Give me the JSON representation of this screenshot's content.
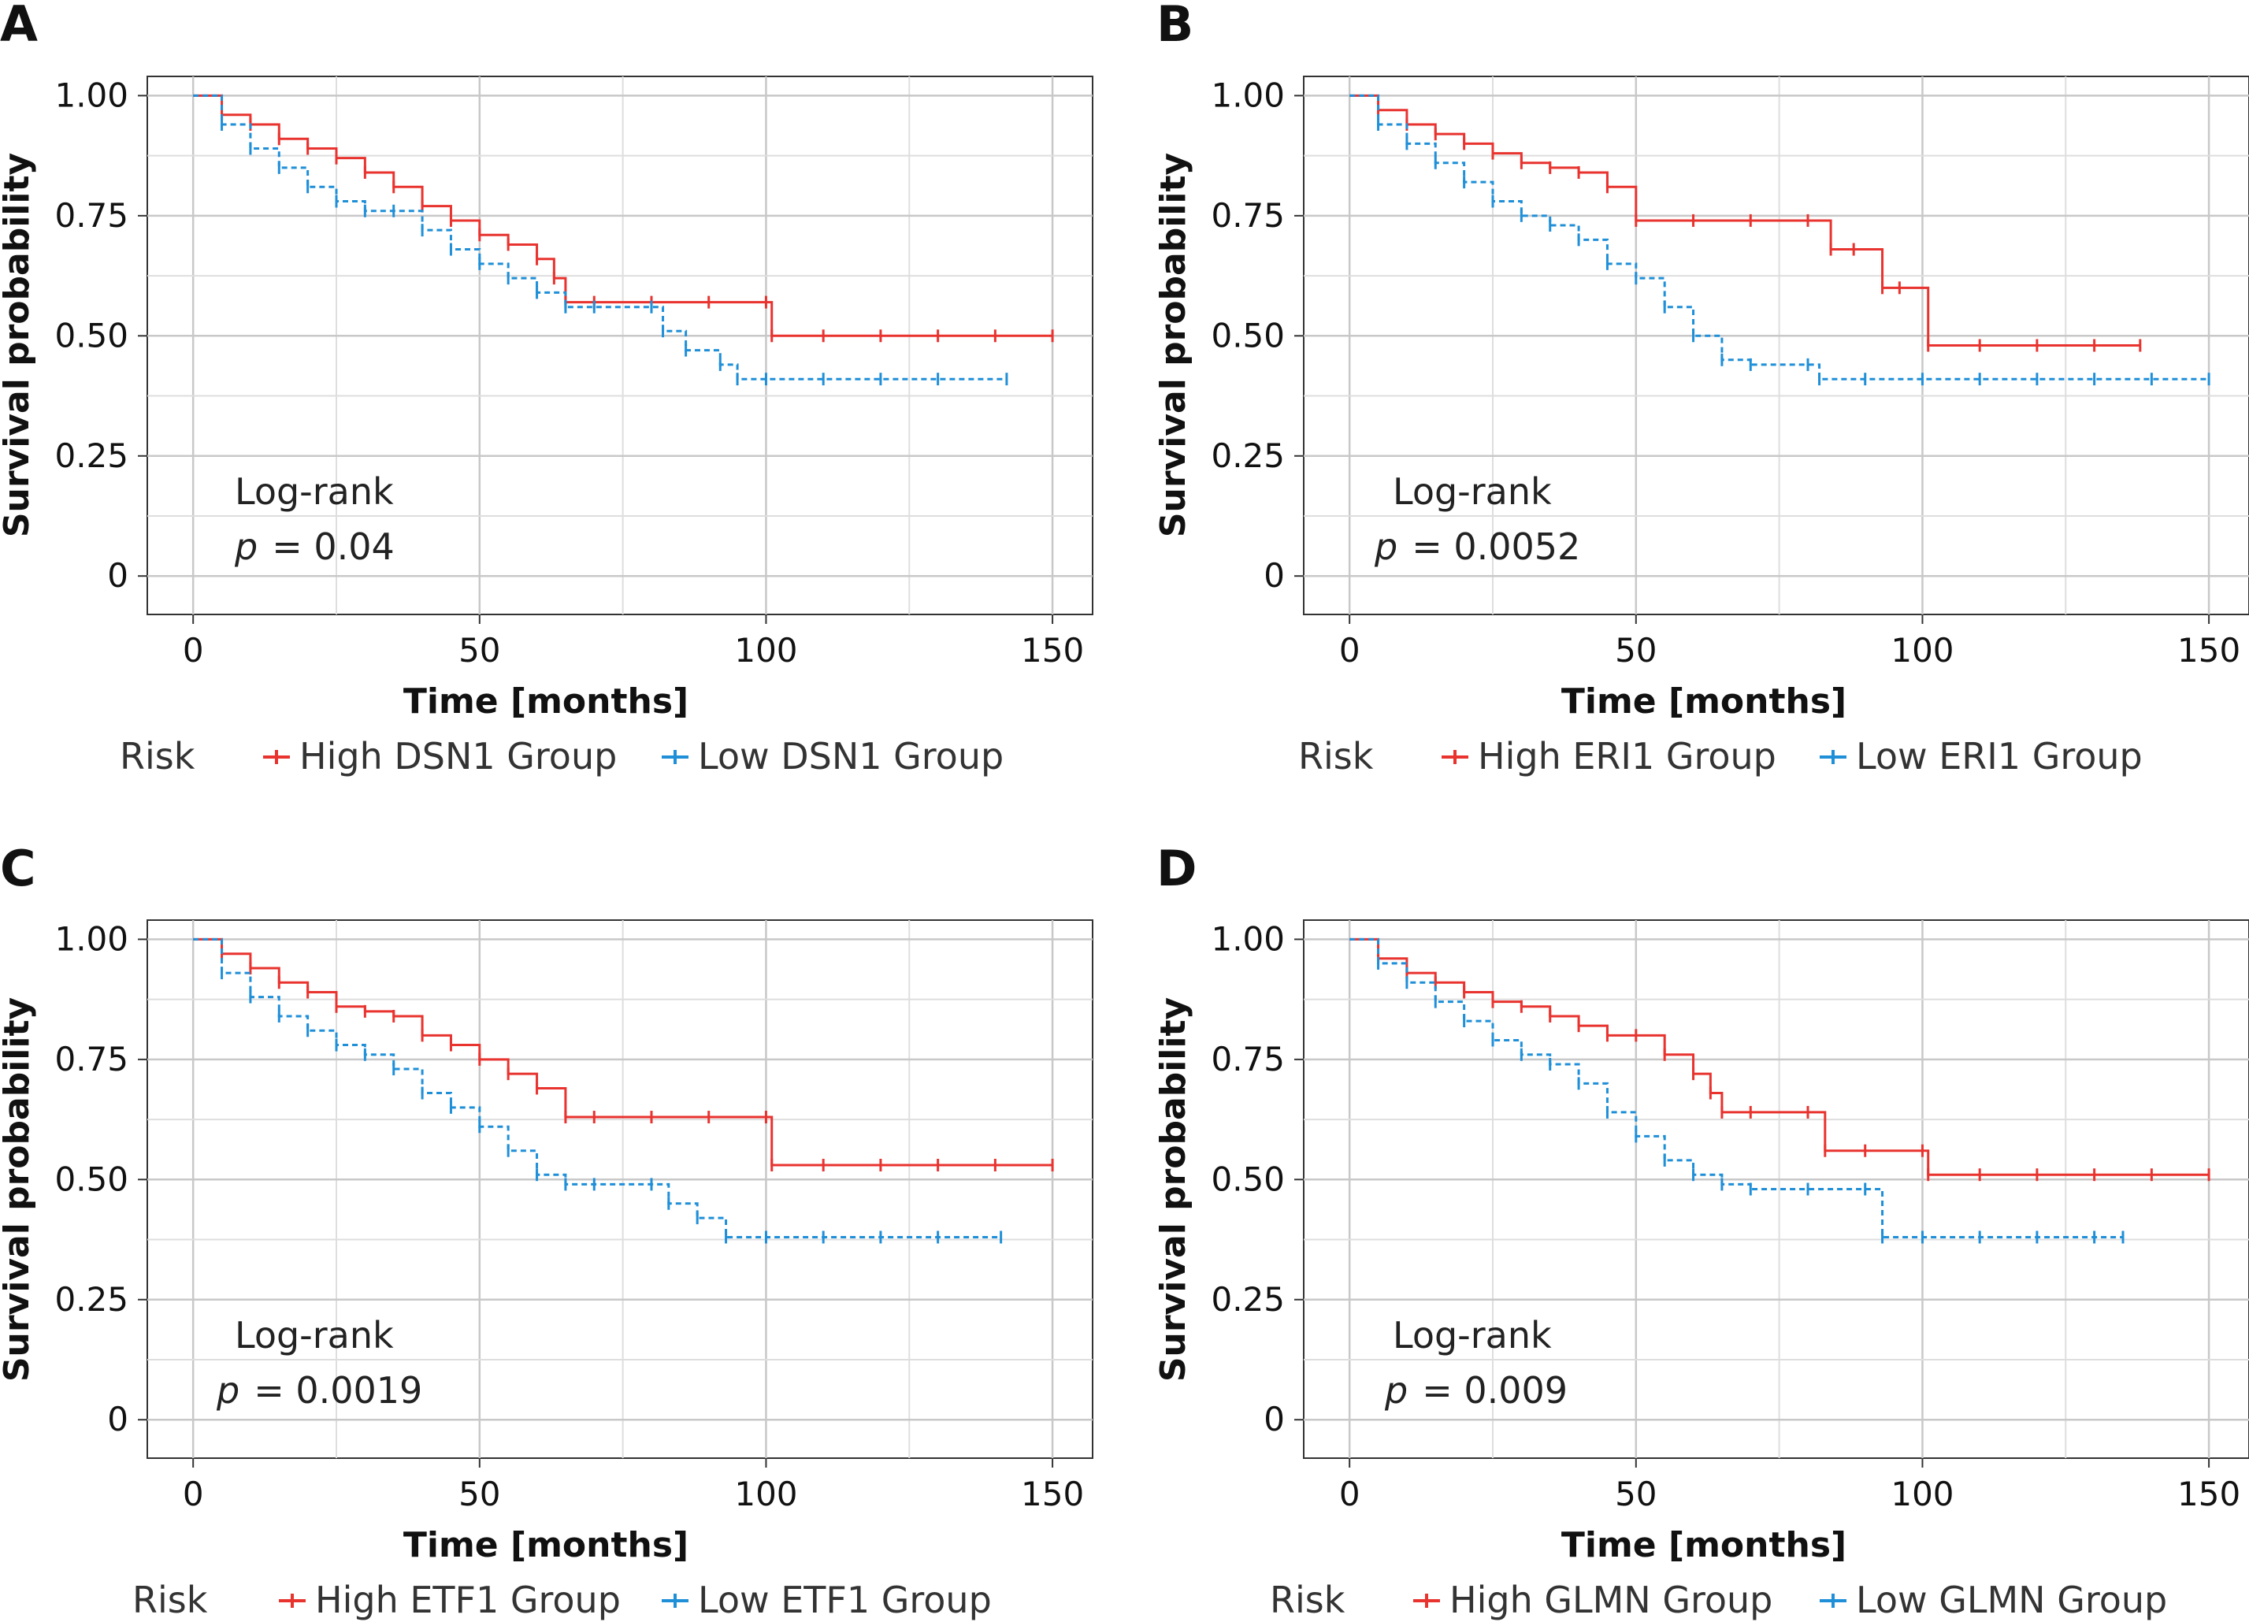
{
  "chart_data": [
    {
      "panel_label": "A",
      "type": "line",
      "xlabel": "Time [months]",
      "ylabel": "Survival probability",
      "xlim": [
        -8,
        157
      ],
      "ylim": [
        -0.08,
        1.04
      ],
      "xticks": [
        "0",
        "50",
        "100",
        "150"
      ],
      "yticks": [
        "0",
        "0.25",
        "0.50",
        "0.75",
        "1.00"
      ],
      "grid": true,
      "annotation_title": "Log-rank",
      "annotation_p_symbol": "p",
      "annotation_p_value": "= 0.04",
      "legend_title": "Risk",
      "legend_position": "bottom",
      "series": [
        {
          "name": "High DSN1 Group",
          "color": "#e8332f",
          "dashed": false,
          "x": [
            0,
            5,
            10,
            15,
            20,
            25,
            30,
            35,
            40,
            45,
            50,
            55,
            60,
            63,
            65,
            70,
            80,
            90,
            100,
            101,
            110,
            120,
            130,
            140,
            150
          ],
          "y": [
            1.0,
            0.96,
            0.94,
            0.91,
            0.89,
            0.87,
            0.84,
            0.81,
            0.77,
            0.74,
            0.71,
            0.69,
            0.66,
            0.62,
            0.57,
            0.57,
            0.57,
            0.57,
            0.57,
            0.5,
            0.5,
            0.5,
            0.5,
            0.5,
            0.5
          ]
        },
        {
          "name": "Low DSN1 Group",
          "color": "#1f8fd8",
          "dashed": true,
          "x": [
            0,
            5,
            10,
            15,
            20,
            25,
            30,
            35,
            40,
            45,
            50,
            55,
            60,
            65,
            70,
            80,
            82,
            86,
            92,
            95,
            100,
            110,
            120,
            130,
            142
          ],
          "y": [
            1.0,
            0.94,
            0.89,
            0.85,
            0.81,
            0.78,
            0.76,
            0.76,
            0.72,
            0.68,
            0.65,
            0.62,
            0.59,
            0.56,
            0.56,
            0.56,
            0.51,
            0.47,
            0.44,
            0.41,
            0.41,
            0.41,
            0.41,
            0.41,
            0.41
          ]
        }
      ]
    },
    {
      "panel_label": "B",
      "type": "line",
      "xlabel": "Time [months]",
      "ylabel": "Survival probability",
      "xlim": [
        -8,
        157
      ],
      "ylim": [
        -0.08,
        1.04
      ],
      "xticks": [
        "0",
        "50",
        "100",
        "150"
      ],
      "yticks": [
        "0",
        "0.25",
        "0.50",
        "0.75",
        "1.00"
      ],
      "grid": true,
      "annotation_title": "Log-rank",
      "annotation_p_symbol": "p",
      "annotation_p_value": "= 0.0052",
      "legend_title": "Risk",
      "legend_position": "bottom",
      "series": [
        {
          "name": "High ERI1 Group",
          "color": "#e8332f",
          "dashed": false,
          "x": [
            0,
            5,
            10,
            15,
            20,
            25,
            30,
            35,
            40,
            45,
            50,
            60,
            70,
            80,
            84,
            88,
            93,
            96,
            101,
            110,
            120,
            130,
            138
          ],
          "y": [
            1.0,
            0.97,
            0.94,
            0.92,
            0.9,
            0.88,
            0.86,
            0.85,
            0.84,
            0.81,
            0.74,
            0.74,
            0.74,
            0.74,
            0.68,
            0.68,
            0.6,
            0.6,
            0.48,
            0.48,
            0.48,
            0.48,
            0.48
          ]
        },
        {
          "name": "Low ERI1 Group",
          "color": "#1f8fd8",
          "dashed": true,
          "x": [
            0,
            5,
            10,
            15,
            20,
            25,
            30,
            35,
            40,
            45,
            50,
            55,
            60,
            65,
            70,
            80,
            82,
            90,
            100,
            110,
            120,
            130,
            140,
            150
          ],
          "y": [
            1.0,
            0.94,
            0.9,
            0.86,
            0.82,
            0.78,
            0.75,
            0.73,
            0.7,
            0.65,
            0.62,
            0.56,
            0.5,
            0.45,
            0.44,
            0.44,
            0.41,
            0.41,
            0.41,
            0.41,
            0.41,
            0.41,
            0.41,
            0.41
          ]
        }
      ]
    },
    {
      "panel_label": "C",
      "type": "line",
      "xlabel": "Time [months]",
      "ylabel": "Survival probability",
      "xlim": [
        -8,
        157
      ],
      "ylim": [
        -0.08,
        1.04
      ],
      "xticks": [
        "0",
        "50",
        "100",
        "150"
      ],
      "yticks": [
        "0",
        "0.25",
        "0.50",
        "0.75",
        "1.00"
      ],
      "grid": true,
      "annotation_title": "Log-rank",
      "annotation_p_symbol": "p",
      "annotation_p_value": "= 0.0019",
      "legend_title": "Risk",
      "legend_position": "bottom",
      "series": [
        {
          "name": "High ETF1 Group",
          "color": "#e8332f",
          "dashed": false,
          "x": [
            0,
            5,
            10,
            15,
            20,
            25,
            30,
            35,
            40,
            45,
            50,
            55,
            60,
            65,
            70,
            80,
            90,
            100,
            101,
            110,
            120,
            130,
            140,
            150
          ],
          "y": [
            1.0,
            0.97,
            0.94,
            0.91,
            0.89,
            0.86,
            0.85,
            0.84,
            0.8,
            0.78,
            0.75,
            0.72,
            0.69,
            0.63,
            0.63,
            0.63,
            0.63,
            0.63,
            0.53,
            0.53,
            0.53,
            0.53,
            0.53,
            0.53
          ]
        },
        {
          "name": "Low ETF1 Group",
          "color": "#1f8fd8",
          "dashed": true,
          "x": [
            0,
            5,
            10,
            15,
            20,
            25,
            30,
            35,
            40,
            45,
            50,
            55,
            60,
            65,
            70,
            80,
            83,
            88,
            93,
            100,
            110,
            120,
            130,
            141
          ],
          "y": [
            1.0,
            0.93,
            0.88,
            0.84,
            0.81,
            0.78,
            0.76,
            0.73,
            0.68,
            0.65,
            0.61,
            0.56,
            0.51,
            0.49,
            0.49,
            0.49,
            0.45,
            0.42,
            0.38,
            0.38,
            0.38,
            0.38,
            0.38,
            0.38
          ]
        }
      ]
    },
    {
      "panel_label": "D",
      "type": "line",
      "xlabel": "Time [months]",
      "ylabel": "Survival probability",
      "xlim": [
        -8,
        157
      ],
      "ylim": [
        -0.08,
        1.04
      ],
      "xticks": [
        "0",
        "50",
        "100",
        "150"
      ],
      "yticks": [
        "0",
        "0.25",
        "0.50",
        "0.75",
        "1.00"
      ],
      "grid": true,
      "annotation_title": "Log-rank",
      "annotation_p_symbol": "p",
      "annotation_p_value": "= 0.009",
      "legend_title": "Risk",
      "legend_position": "bottom",
      "series": [
        {
          "name": "High GLMN Group",
          "color": "#e8332f",
          "dashed": false,
          "x": [
            0,
            5,
            10,
            15,
            20,
            25,
            30,
            35,
            40,
            45,
            50,
            55,
            60,
            63,
            65,
            70,
            80,
            83,
            90,
            100,
            101,
            110,
            120,
            130,
            140,
            150
          ],
          "y": [
            1.0,
            0.96,
            0.93,
            0.91,
            0.89,
            0.87,
            0.86,
            0.84,
            0.82,
            0.8,
            0.8,
            0.76,
            0.72,
            0.68,
            0.64,
            0.64,
            0.64,
            0.56,
            0.56,
            0.56,
            0.51,
            0.51,
            0.51,
            0.51,
            0.51,
            0.51
          ]
        },
        {
          "name": "Low GLMN Group",
          "color": "#1f8fd8",
          "dashed": true,
          "x": [
            0,
            5,
            10,
            15,
            20,
            25,
            30,
            35,
            40,
            45,
            50,
            55,
            60,
            65,
            70,
            80,
            90,
            93,
            100,
            110,
            120,
            130,
            135
          ],
          "y": [
            1.0,
            0.95,
            0.91,
            0.87,
            0.83,
            0.79,
            0.76,
            0.74,
            0.7,
            0.64,
            0.59,
            0.54,
            0.51,
            0.49,
            0.48,
            0.48,
            0.48,
            0.38,
            0.38,
            0.38,
            0.38,
            0.38,
            0.38
          ]
        }
      ]
    }
  ]
}
